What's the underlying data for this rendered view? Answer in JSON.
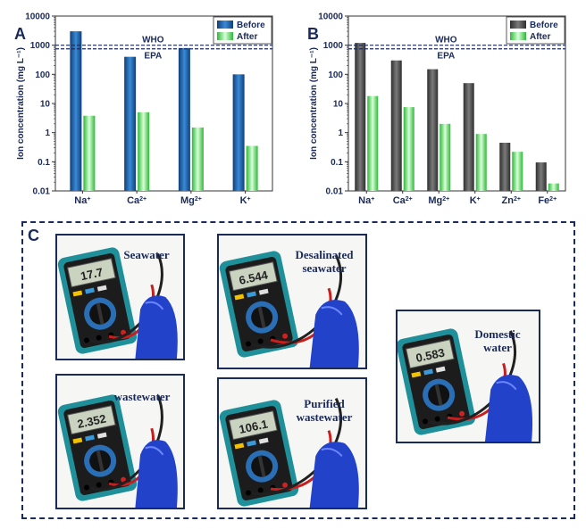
{
  "chart_data": [
    {
      "type": "bar",
      "panel": "A",
      "scale": "log",
      "ylabel": "Ion concentration (mg L⁻¹)",
      "ylim": [
        0.01,
        10000
      ],
      "yticks": [
        "0.01",
        "0.1",
        "1",
        "10",
        "100",
        "1000",
        "10000"
      ],
      "categories": [
        "Na",
        "Ca",
        "Mg",
        "K"
      ],
      "superscripts": [
        "+",
        "2+",
        "2+",
        "+"
      ],
      "series": [
        {
          "name": "Before",
          "color": "#1f63a8",
          "values": [
            3000,
            400,
            800,
            100
          ]
        },
        {
          "name": "After",
          "color": "#4fdc5a",
          "values": [
            3.8,
            5.0,
            1.5,
            0.35
          ]
        }
      ],
      "reference_lines": [
        {
          "label": "WHO",
          "value": 1000
        },
        {
          "label": "EPA",
          "value": 750
        }
      ],
      "legend": "top-right"
    },
    {
      "type": "bar",
      "panel": "B",
      "scale": "log",
      "ylabel": "Ion concentration (mg L⁻¹)",
      "ylim": [
        0.01,
        10000
      ],
      "yticks": [
        "0.01",
        "0.1",
        "1",
        "10",
        "100",
        "1000",
        "10000"
      ],
      "categories": [
        "Na",
        "Ca",
        "Mg",
        "K",
        "Zn",
        "Fe"
      ],
      "superscripts": [
        "+",
        "2+",
        "2+",
        "+",
        "2+",
        "2+"
      ],
      "series": [
        {
          "name": "Before",
          "color": "#4a4a4a",
          "values": [
            1200,
            300,
            150,
            50,
            0.45,
            0.095
          ]
        },
        {
          "name": "After",
          "color": "#4fdc5a",
          "values": [
            18,
            7.5,
            2.0,
            0.9,
            0.22,
            0.018
          ]
        }
      ],
      "reference_lines": [
        {
          "label": "WHO",
          "value": 1000
        },
        {
          "label": "EPA",
          "value": 750
        }
      ],
      "legend": "top-right"
    }
  ],
  "panel_c": {
    "label": "C",
    "photos": [
      {
        "caption": "Seawater",
        "reading": "17.7"
      },
      {
        "caption": "Desalinated\nseawater",
        "reading": "6.544"
      },
      {
        "caption": "wastewater",
        "reading": "2.352"
      },
      {
        "caption": "Purified\nwastewater",
        "reading": "106.1"
      },
      {
        "caption": "Domestic\nwater",
        "reading": "0.583"
      }
    ]
  }
}
